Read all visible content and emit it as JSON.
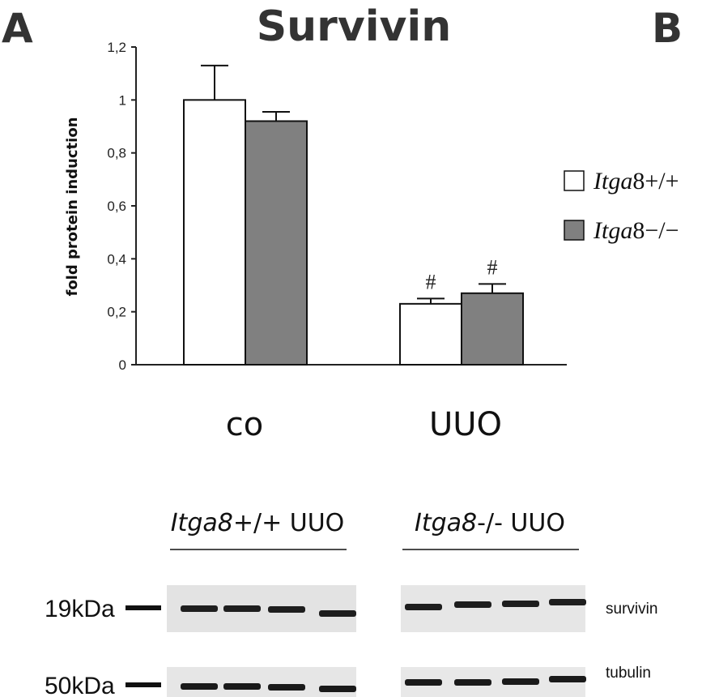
{
  "panel_labels": [
    "A",
    "B"
  ],
  "chart_data": {
    "type": "bar",
    "title": "Survivin",
    "ylabel": "fold protein induction",
    "xlabel": "",
    "categories": [
      "co",
      "UUO"
    ],
    "ylim": [
      0,
      1.2
    ],
    "yticks": [
      "0",
      "0,2",
      "0,4",
      "0,6",
      "0,8",
      "1",
      "1,2"
    ],
    "series": [
      {
        "name": "Itga8+/+",
        "values": [
          1.0,
          0.23
        ],
        "errors": [
          0.13,
          0.02
        ],
        "color": "#ffffff"
      },
      {
        "name": "Itga8−/−",
        "values": [
          0.92,
          0.27
        ],
        "errors": [
          0.035,
          0.035
        ],
        "color": "#808080"
      }
    ],
    "legend": {
      "placement": "right",
      "entries": [
        {
          "italic": "Itga",
          "rest": "8+/+"
        },
        {
          "italic": "Itga",
          "rest": "8−/−"
        }
      ]
    },
    "annotations": [
      {
        "text": "#",
        "category": "UUO",
        "series": 0
      },
      {
        "text": "#",
        "category": "UUO",
        "series": 1
      }
    ]
  },
  "blot": {
    "groups": [
      {
        "italic": "Itga8",
        "rest": "+/+ UUO"
      },
      {
        "italic": "Itga8",
        "rest": "-/- UUO"
      }
    ],
    "rows": [
      {
        "marker": "19kDa",
        "protein": "survivin"
      },
      {
        "marker": "50kDa",
        "protein": "tubulin"
      }
    ]
  }
}
